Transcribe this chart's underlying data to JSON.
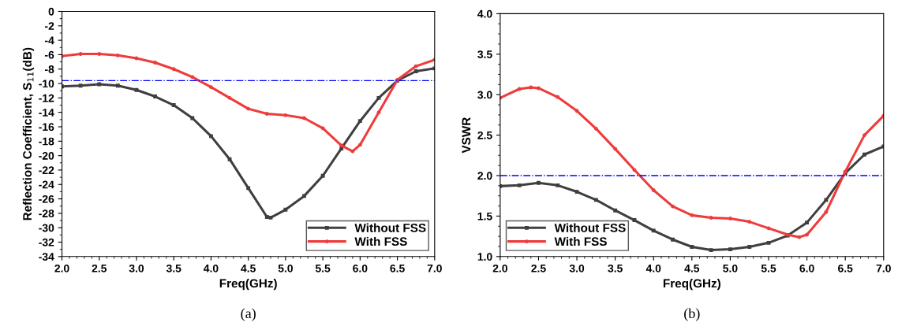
{
  "chart_data": [
    {
      "type": "line",
      "xlabel": "Freq(GHz)",
      "ylabel": "Reflection Coefficient, S$_{11}$(dB)",
      "xlim": [
        2,
        7
      ],
      "xticks": [
        {
          "value": 2,
          "label": "2.0"
        },
        2.5,
        {
          "value": 3,
          "label": "3.0"
        },
        3.5,
        {
          "value": 4,
          "label": "4.0"
        },
        4.5,
        {
          "value": 5,
          "label": "5.0"
        },
        5.5,
        {
          "value": 6,
          "label": "6.0"
        },
        6.5,
        {
          "value": 7,
          "label": "7.0"
        }
      ],
      "ylim": [
        -34,
        0
      ],
      "yticks": [
        -34,
        -32,
        -30,
        -28,
        -26,
        -24,
        -22,
        -20,
        -18,
        -16,
        -14,
        -12,
        -10,
        -8,
        -6,
        -4,
        -2,
        0
      ],
      "grid": false,
      "legend": "bottom right",
      "annotations": [
        "(a)"
      ],
      "ref_lines": [
        {
          "axis": "y",
          "value": -9.6,
          "color": "#0000ff",
          "line_style": "dashdot"
        }
      ],
      "series": [
        {
          "name": "Without FSS",
          "color": "#3f3f3f",
          "marker": "square",
          "x": [
            2.0,
            2.25,
            2.5,
            2.75,
            3.0,
            3.25,
            3.5,
            3.75,
            4.0,
            4.25,
            4.5,
            4.75,
            4.8,
            5.0,
            5.25,
            5.5,
            5.75,
            6.0,
            6.25,
            6.5,
            6.75,
            7.0
          ],
          "values": [
            -10.4,
            -10.3,
            -10.1,
            -10.3,
            -10.9,
            -11.8,
            -13.0,
            -14.8,
            -17.3,
            -20.5,
            -24.5,
            -28.5,
            -28.6,
            -27.5,
            -25.6,
            -22.8,
            -19.0,
            -15.2,
            -12.0,
            -9.6,
            -8.3,
            -7.9
          ]
        },
        {
          "name": "With FSS",
          "color": "#ee3b3b",
          "marker": "circle",
          "x": [
            2.0,
            2.25,
            2.5,
            2.75,
            3.0,
            3.25,
            3.5,
            3.75,
            4.0,
            4.25,
            4.5,
            4.75,
            5.0,
            5.25,
            5.5,
            5.75,
            5.9,
            6.0,
            6.25,
            6.5,
            6.75,
            7.0
          ],
          "values": [
            -6.2,
            -5.9,
            -5.9,
            -6.1,
            -6.5,
            -7.1,
            -8.0,
            -9.1,
            -10.5,
            -12.0,
            -13.5,
            -14.2,
            -14.4,
            -14.8,
            -16.2,
            -18.6,
            -19.4,
            -18.5,
            -14.0,
            -9.5,
            -7.6,
            -6.7
          ]
        }
      ]
    },
    {
      "type": "line",
      "xlabel": "Freq(GHz)",
      "ylabel": "VSWR",
      "xlim": [
        2,
        7
      ],
      "xticks": [
        {
          "value": 2,
          "label": "2.0"
        },
        2.5,
        {
          "value": 3,
          "label": "3.0"
        },
        3.5,
        {
          "value": 4,
          "label": "4.0"
        },
        4.5,
        {
          "value": 5,
          "label": "5.0"
        },
        5.5,
        {
          "value": 6,
          "label": "6.0"
        },
        6.5,
        {
          "value": 7,
          "label": "7.0"
        }
      ],
      "ylim": [
        1,
        4
      ],
      "yticks": [
        {
          "value": 1,
          "label": "1.0"
        },
        1.5,
        {
          "value": 2,
          "label": "2.0"
        },
        2.5,
        {
          "value": 3,
          "label": "3.0"
        },
        3.5,
        {
          "value": 4,
          "label": "4.0"
        }
      ],
      "grid": false,
      "legend": "bottom left",
      "annotations": [
        "(b)"
      ],
      "ref_lines": [
        {
          "axis": "y",
          "value": 2.0,
          "color": "#0000ff",
          "line_style": "dashdot"
        }
      ],
      "series": [
        {
          "name": "Without FSS",
          "color": "#3f3f3f",
          "marker": "square",
          "x": [
            2.0,
            2.25,
            2.5,
            2.75,
            3.0,
            3.25,
            3.5,
            3.75,
            4.0,
            4.25,
            4.5,
            4.75,
            5.0,
            5.25,
            5.5,
            5.75,
            6.0,
            6.25,
            6.5,
            6.75,
            7.0
          ],
          "values": [
            1.87,
            1.88,
            1.91,
            1.88,
            1.8,
            1.7,
            1.57,
            1.45,
            1.32,
            1.21,
            1.12,
            1.08,
            1.09,
            1.12,
            1.17,
            1.26,
            1.42,
            1.7,
            2.03,
            2.26,
            2.36
          ]
        },
        {
          "name": "With FSS",
          "color": "#ee3b3b",
          "marker": "circle",
          "x": [
            2.0,
            2.25,
            2.4,
            2.5,
            2.75,
            3.0,
            3.25,
            3.5,
            3.75,
            4.0,
            4.25,
            4.5,
            4.75,
            5.0,
            5.25,
            5.5,
            5.75,
            5.9,
            6.0,
            6.25,
            6.5,
            6.75,
            7.0
          ],
          "values": [
            2.96,
            3.07,
            3.09,
            3.08,
            2.97,
            2.8,
            2.58,
            2.33,
            2.07,
            1.82,
            1.62,
            1.51,
            1.48,
            1.47,
            1.43,
            1.35,
            1.27,
            1.24,
            1.27,
            1.55,
            2.05,
            2.5,
            2.74
          ]
        }
      ]
    }
  ]
}
